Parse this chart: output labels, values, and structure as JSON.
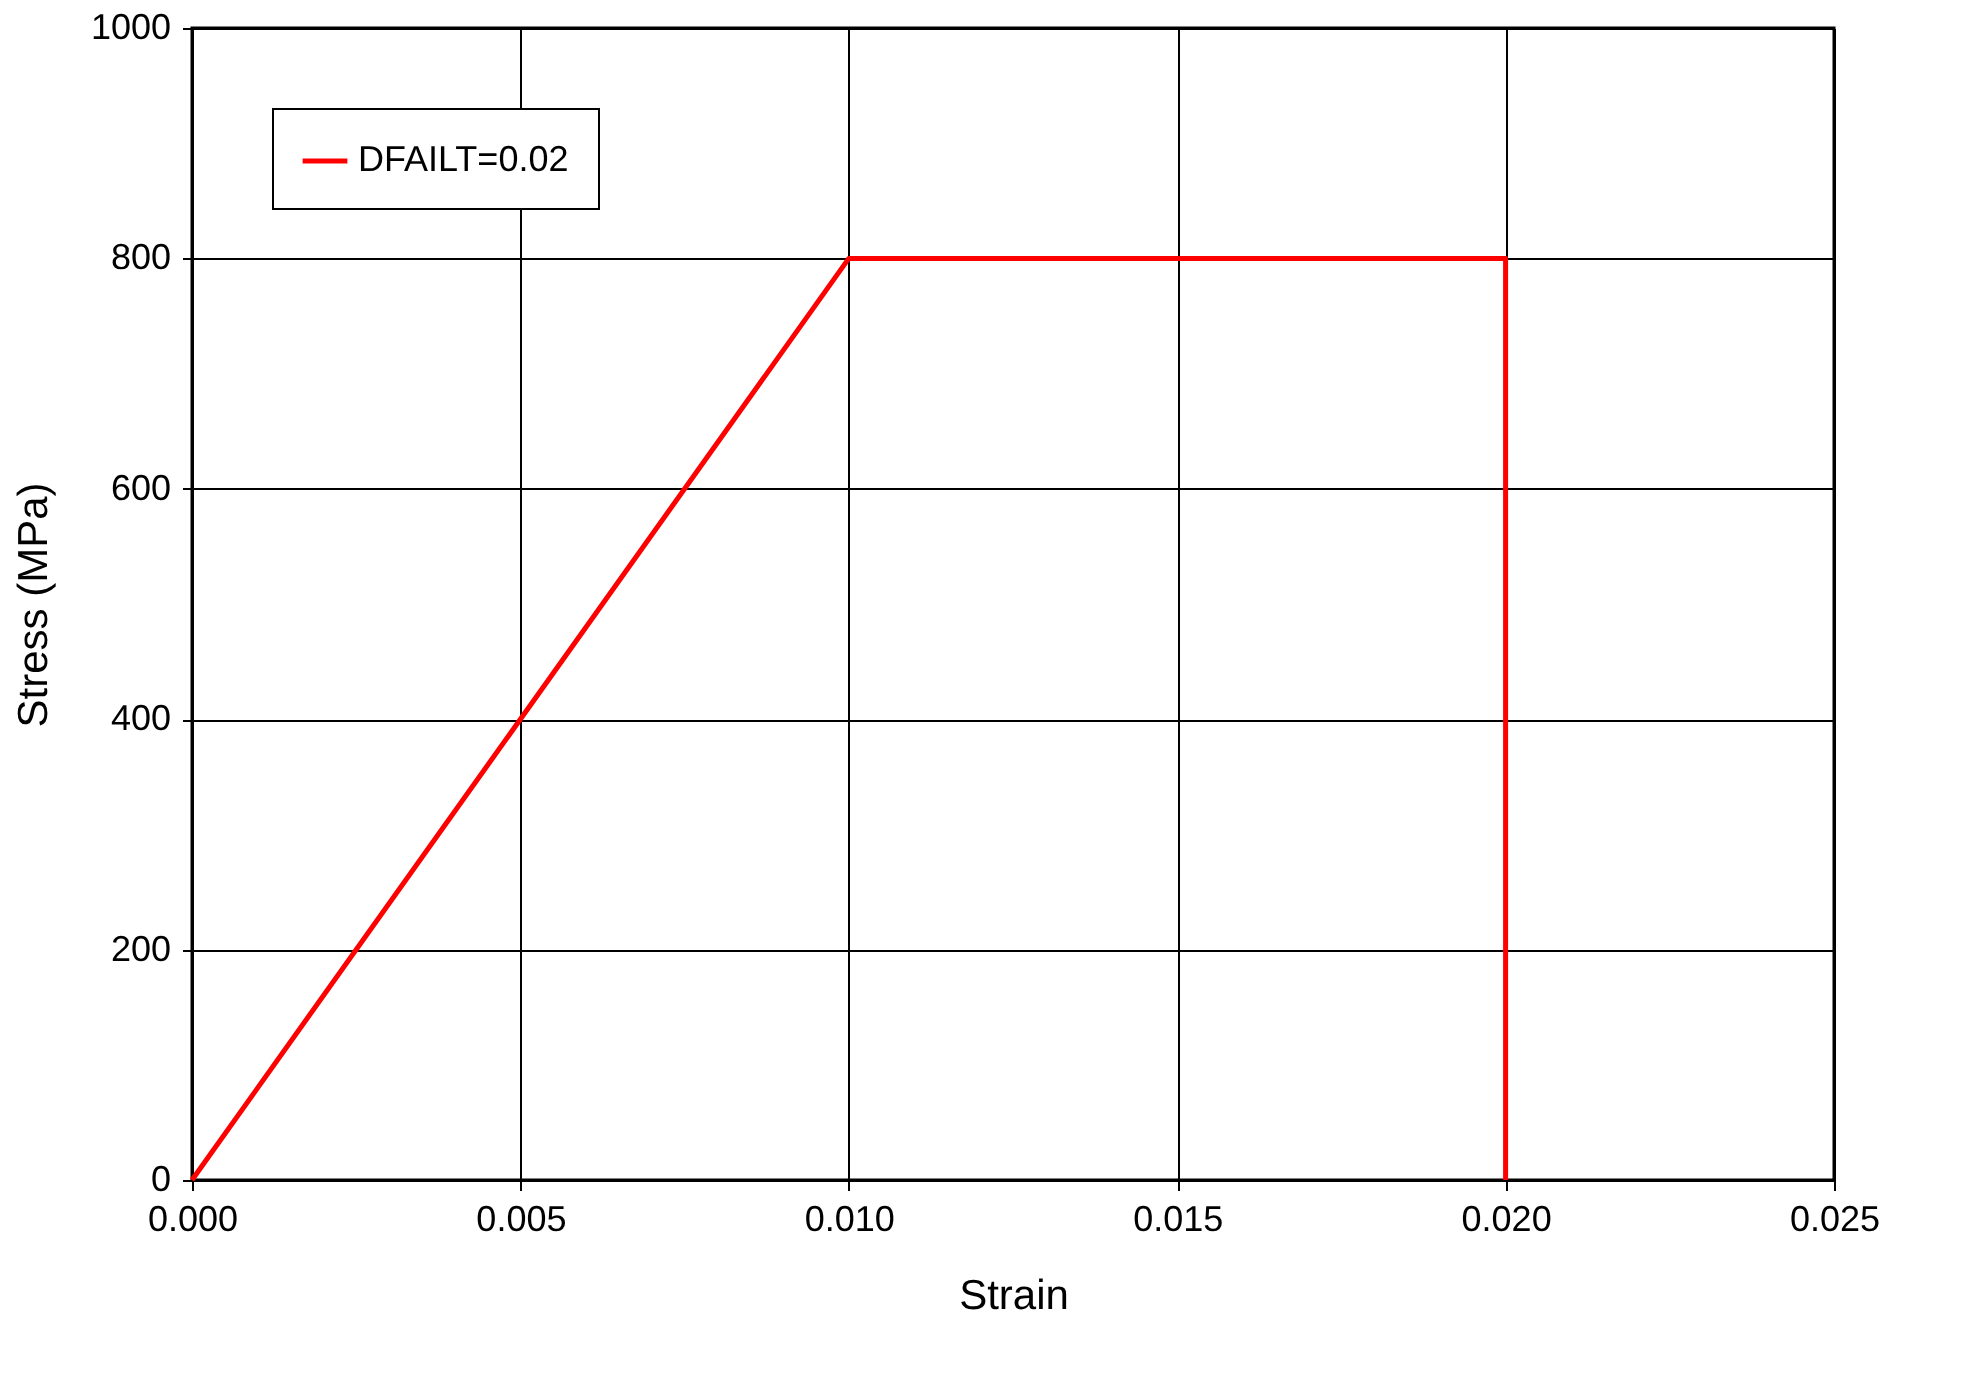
{
  "chart_data": {
    "type": "line",
    "x": [
      0,
      0.01,
      0.02,
      0.02
    ],
    "series": [
      {
        "name": "DFAILT=0.02",
        "color": "#ff0000",
        "values": [
          0,
          800,
          800,
          0
        ]
      }
    ],
    "xlabel": "Strain",
    "ylabel": "Stress (MPa)",
    "xlim": [
      0,
      0.025
    ],
    "xticks": [
      {
        "value": 0,
        "label": "0.000"
      },
      {
        "value": 0.005,
        "label": "0.005"
      },
      {
        "value": 0.01,
        "label": "0.010"
      },
      {
        "value": 0.015,
        "label": "0.015"
      },
      {
        "value": 0.02,
        "label": "0.020"
      },
      {
        "value": 0.025,
        "label": "0.025"
      }
    ],
    "ylim": [
      0,
      1000
    ],
    "yticks": [
      0,
      200,
      400,
      600,
      800,
      1000
    ],
    "grid": true,
    "legend": "top left",
    "marker": "none",
    "line_style": "solid"
  }
}
